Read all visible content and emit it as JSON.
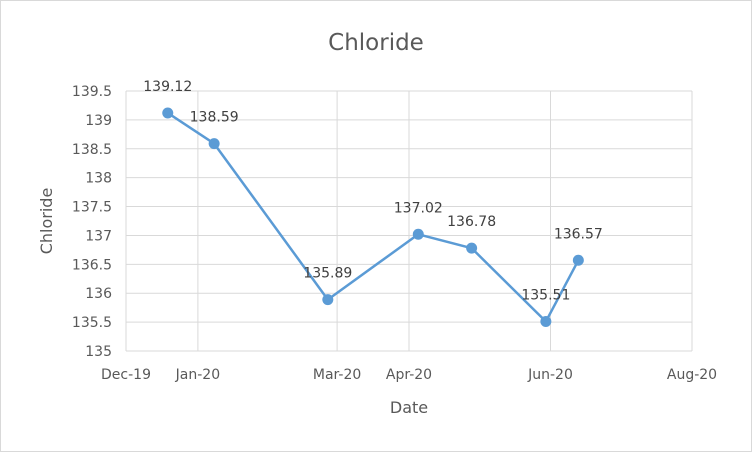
{
  "chart_data": {
    "type": "line",
    "title": "Chloride",
    "xlabel": "Date",
    "ylabel": "Chloride",
    "xlim": [
      "2019-12-01",
      "2020-08-01"
    ],
    "ylim": [
      135,
      139.5
    ],
    "y_ticks": [
      135,
      135.5,
      136,
      136.5,
      137,
      137.5,
      138,
      138.5,
      139,
      139.5
    ],
    "x_ticks": [
      {
        "date": "2019-12-01",
        "label": "Dec-19"
      },
      {
        "date": "2020-01-01",
        "label": "Jan-20"
      },
      {
        "date": "2020-03-01",
        "label": "Mar-20"
      },
      {
        "date": "2020-04-01",
        "label": "Apr-20"
      },
      {
        "date": "2020-06-01",
        "label": "Jun-20"
      },
      {
        "date": "2020-08-01",
        "label": "Aug-20"
      }
    ],
    "grid": true,
    "legend": "none",
    "series": [
      {
        "color": "#5b9bd5",
        "points": [
          {
            "x": "2019-12-19",
            "y": 139.12,
            "label": "139.12"
          },
          {
            "x": "2020-01-08",
            "y": 138.59,
            "label": "138.59"
          },
          {
            "x": "2020-02-26",
            "y": 135.89,
            "label": "135.89"
          },
          {
            "x": "2020-04-05",
            "y": 137.02,
            "label": "137.02"
          },
          {
            "x": "2020-04-28",
            "y": 136.78,
            "label": "136.78"
          },
          {
            "x": "2020-05-30",
            "y": 135.51,
            "label": "135.51"
          },
          {
            "x": "2020-06-13",
            "y": 136.57,
            "label": "136.57"
          }
        ]
      }
    ]
  }
}
